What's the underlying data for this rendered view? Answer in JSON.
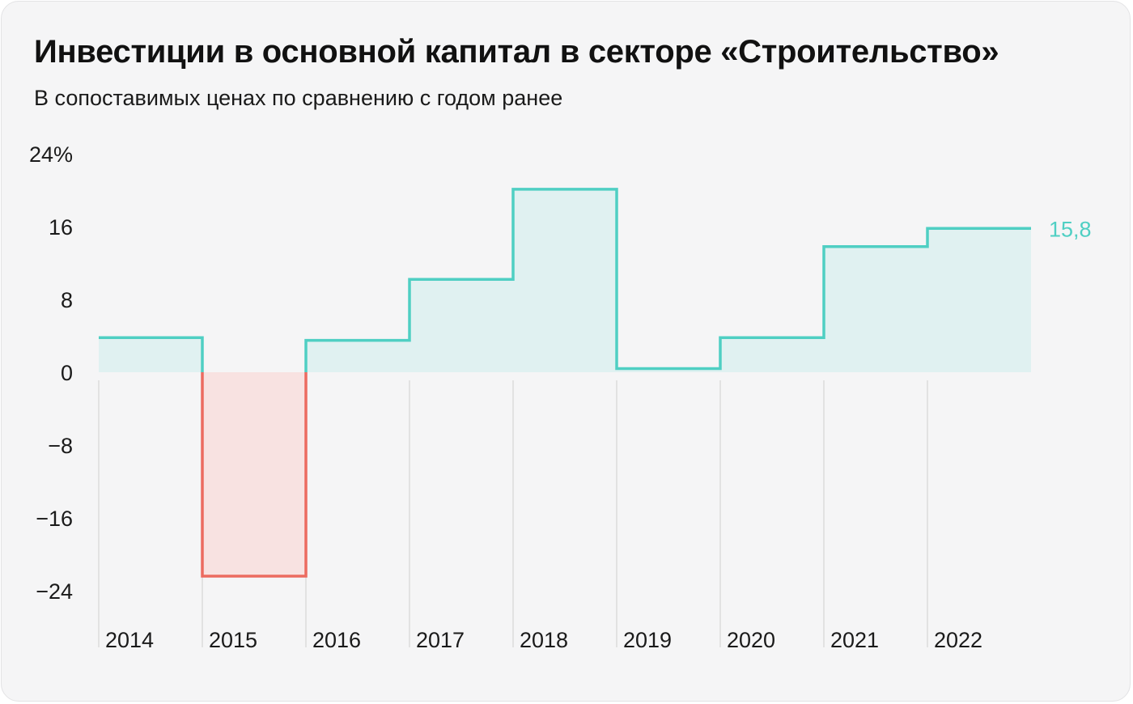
{
  "header": {
    "title": "Инвестиции в основной капитал в секторе «Строительство»",
    "subtitle": "В сопоставимых ценах по сравнению с годом ранее"
  },
  "colors": {
    "positive_line": "#4fcfc3",
    "positive_fill": "#e0f1f1",
    "negative_line": "#ec6b60",
    "negative_fill": "#f8e2e1",
    "gridline": "#dcdcdc",
    "text": "#1a1a1a",
    "background": "#f5f5f6"
  },
  "chart_data": {
    "type": "area",
    "style": "step",
    "title": "Инвестиции в основной капитал в секторе «Строительство»",
    "subtitle": "В сопоставимых ценах по сравнению с годом ранее",
    "xlabel": "",
    "ylabel": "",
    "categories": [
      "2014",
      "2015",
      "2016",
      "2017",
      "2018",
      "2019",
      "2020",
      "2021",
      "2022"
    ],
    "values": [
      3.8,
      -22.4,
      3.5,
      10.2,
      20.1,
      0.4,
      3.8,
      13.8,
      15.8
    ],
    "ylim": [
      -24,
      24
    ],
    "yticks": [
      24,
      16,
      8,
      0,
      -8,
      -16,
      -24
    ],
    "ytick_labels": [
      "24%",
      "16",
      "8",
      "0",
      "−8",
      "−16",
      "−24"
    ],
    "annotation": {
      "category": "2022",
      "text": "15,8"
    },
    "grid": "vertical"
  }
}
